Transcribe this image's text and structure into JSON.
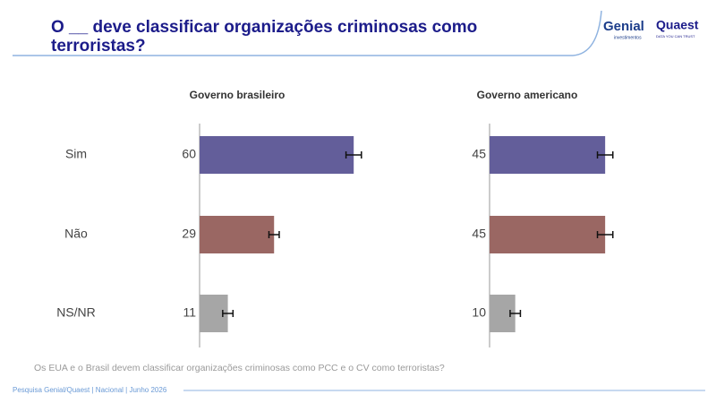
{
  "header": {
    "title_line1": "O __ deve classificar organizações criminosas como",
    "title_line2": "terroristas?",
    "logo_genial": "Genial",
    "logo_genial_sub": "investimentos",
    "logo_quaest": "Quaest",
    "logo_quaest_sub": "DATA YOU CAN TRUST"
  },
  "chart_data": {
    "type": "bar",
    "orientation": "horizontal",
    "categories": [
      "Sim",
      "Não",
      "NS/NR"
    ],
    "colors": [
      "#635e9a",
      "#9a6763",
      "#a6a6a6"
    ],
    "series": [
      {
        "name": "Governo brasileiro",
        "values": [
          60,
          29,
          11
        ],
        "errors": [
          3,
          2,
          2
        ]
      },
      {
        "name": "Governo americano",
        "values": [
          45,
          45,
          10
        ],
        "errors": [
          3,
          3,
          2
        ]
      }
    ]
  },
  "footnote": "Os EUA e o Brasil devem classificar organizações criminosas como PCC e o CV como terroristas?",
  "source": "Pesquisa Genial/Quaest | Nacional | Junho 2026"
}
